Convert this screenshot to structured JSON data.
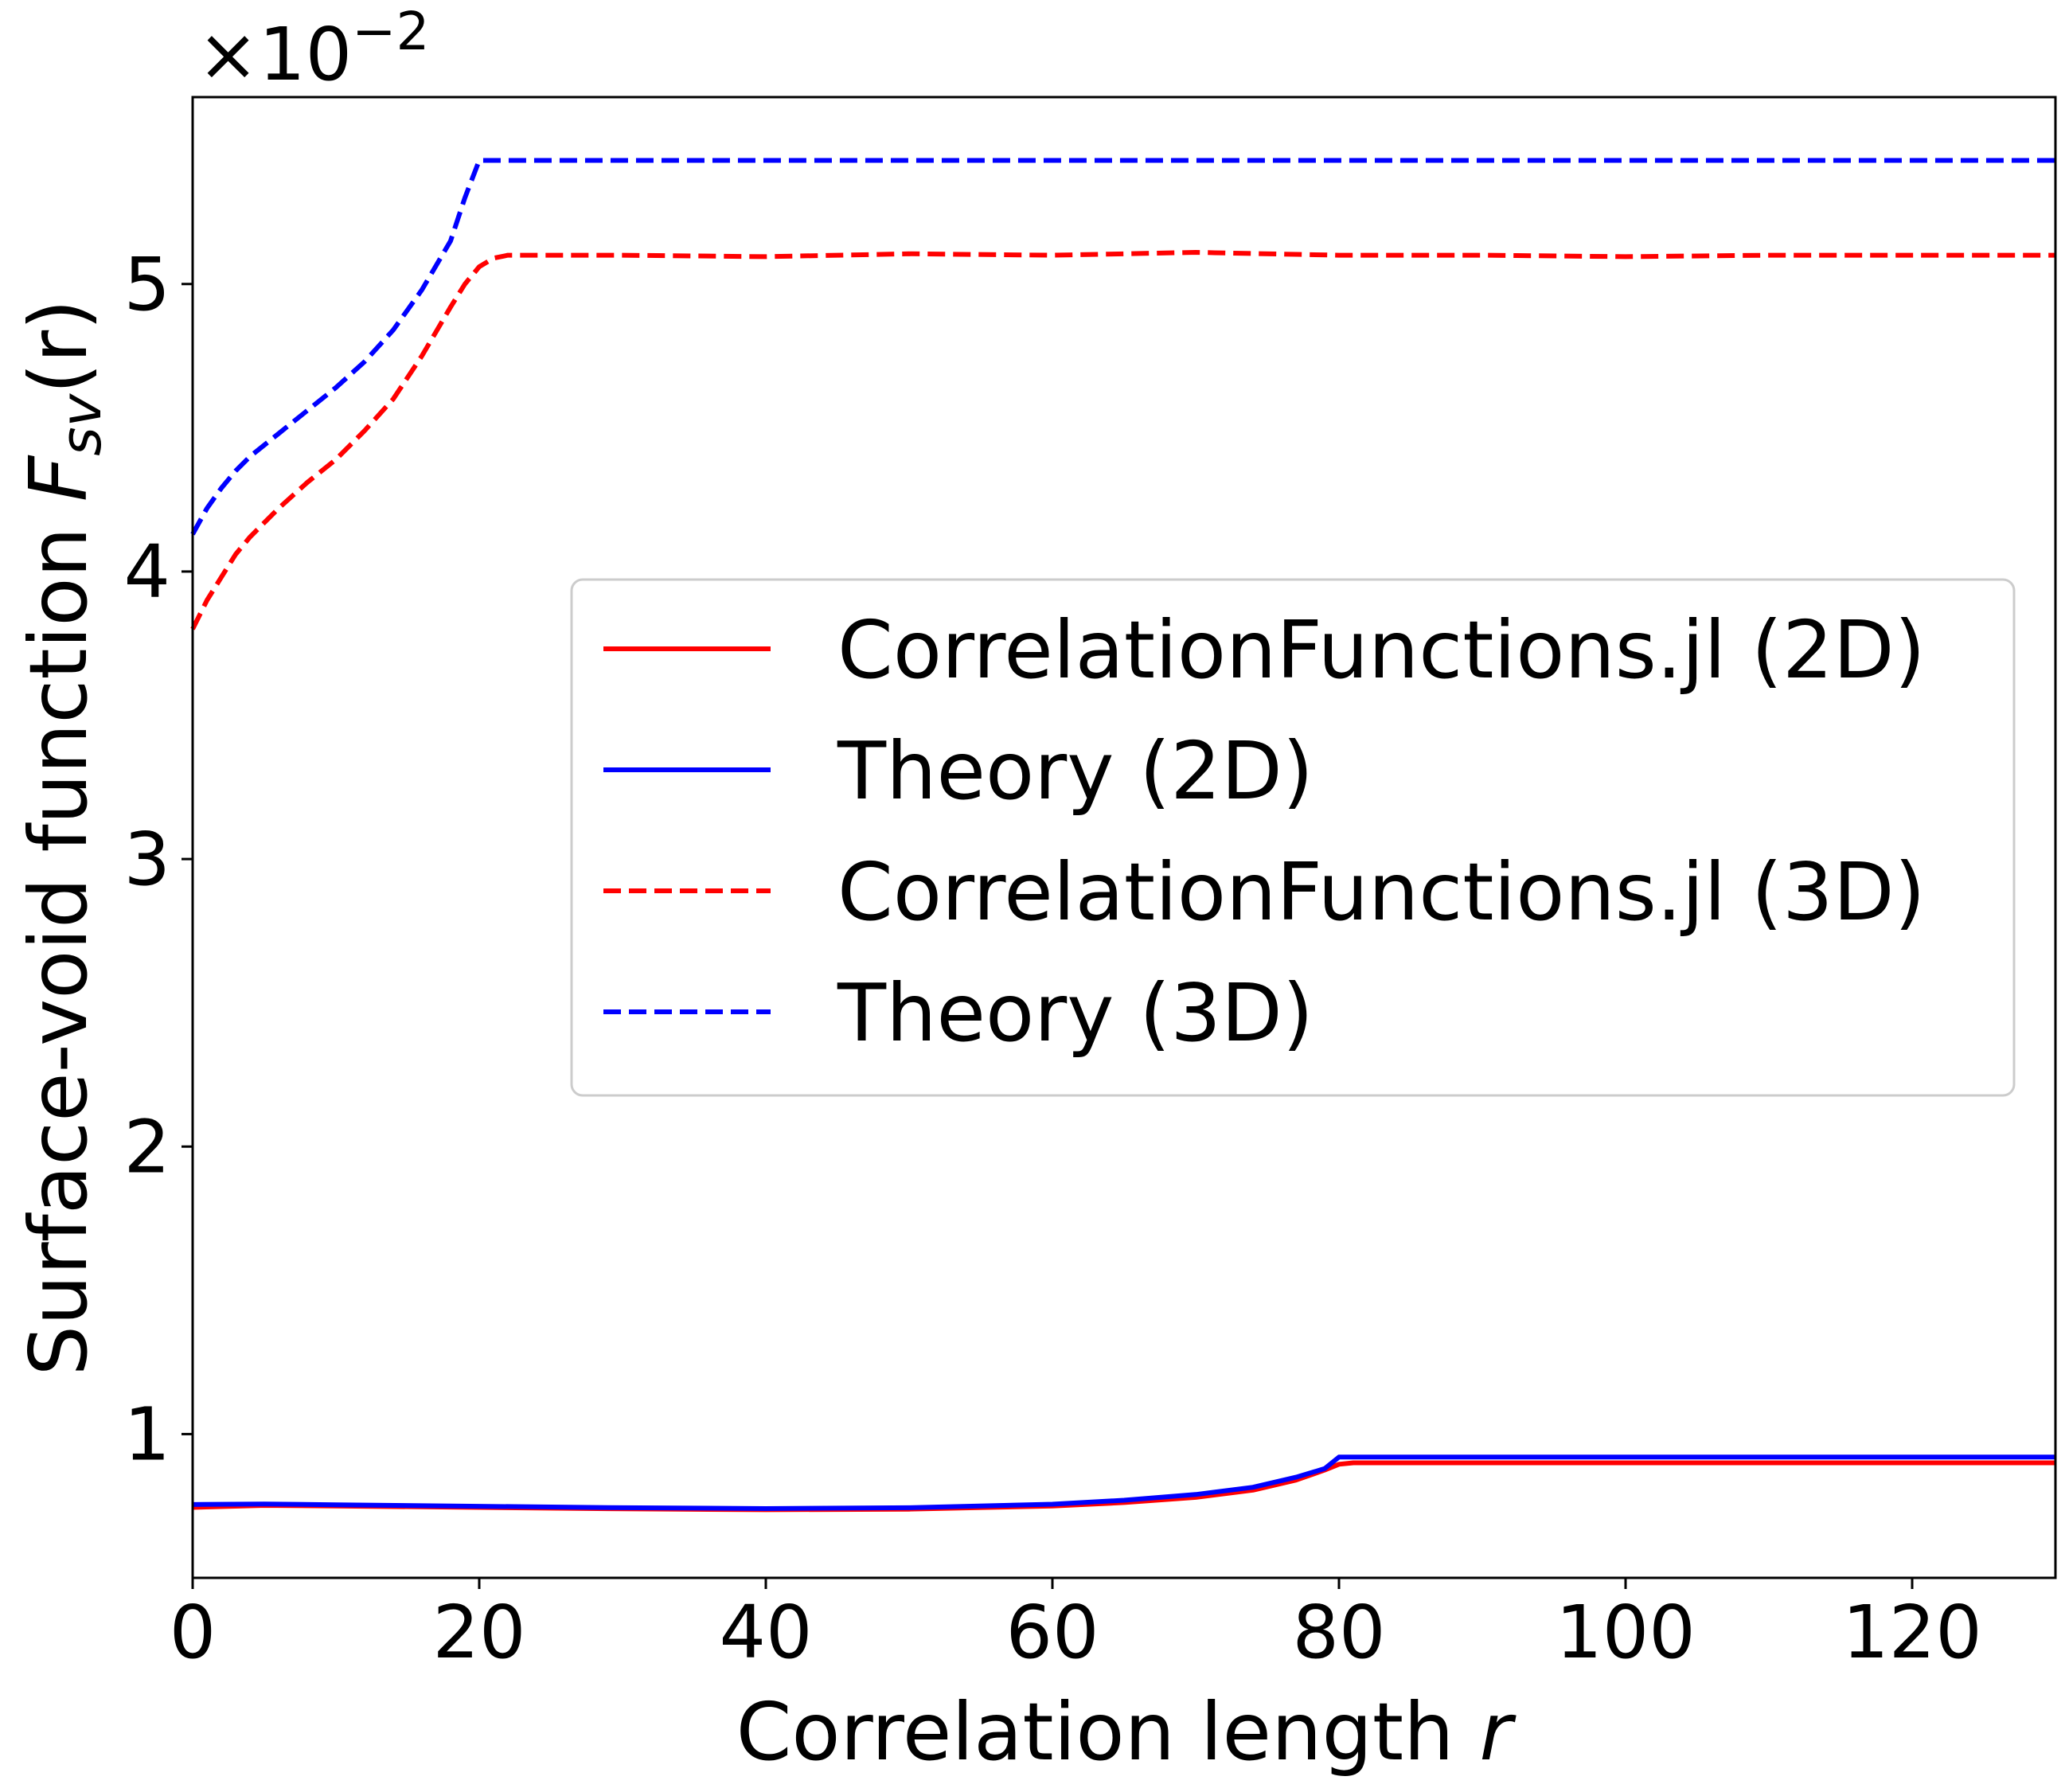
{
  "chart_data": {
    "type": "line",
    "xlabel": "Correlation length",
    "xlabel_var": "r",
    "ylabel": "Surface-void function",
    "ylabel_sym": "F",
    "ylabel_sub": "sv",
    "ylabel_arg": "(r)",
    "y_multiplier": "×10",
    "y_multiplier_exp": "−2",
    "xlim": [
      0,
      130
    ],
    "ylim": [
      0.5,
      5.65
    ],
    "x_ticks": [
      0,
      20,
      40,
      60,
      80,
      100,
      120
    ],
    "x_tick_labels": [
      "0",
      "20",
      "40",
      "60",
      "80",
      "100",
      "120"
    ],
    "y_ticks": [
      1,
      2,
      3,
      4,
      5
    ],
    "y_tick_labels": [
      "1",
      "2",
      "3",
      "4",
      "5"
    ],
    "grid": false,
    "legend_position": "center-right",
    "series": [
      {
        "name": "CorrelationFunctions.jl (2D)",
        "color": "#ff0000",
        "dash": "solid",
        "x": [
          0,
          5,
          10,
          20,
          30,
          40,
          50,
          60,
          65,
          70,
          74,
          77,
          79,
          80,
          81,
          90,
          100,
          110,
          120,
          130
        ],
        "y": [
          0.745,
          0.752,
          0.75,
          0.745,
          0.74,
          0.737,
          0.739,
          0.75,
          0.762,
          0.78,
          0.805,
          0.84,
          0.875,
          0.895,
          0.9,
          0.9,
          0.9,
          0.9,
          0.9,
          0.9
        ]
      },
      {
        "name": "Theory (2D)",
        "color": "#0000ff",
        "dash": "solid",
        "x": [
          0,
          5,
          10,
          20,
          30,
          40,
          50,
          60,
          65,
          70,
          74,
          77,
          79,
          80,
          81,
          90,
          100,
          110,
          120,
          130
        ],
        "y": [
          0.755,
          0.757,
          0.754,
          0.749,
          0.744,
          0.741,
          0.744,
          0.756,
          0.77,
          0.79,
          0.815,
          0.85,
          0.88,
          0.92,
          0.92,
          0.92,
          0.92,
          0.92,
          0.92,
          0.92
        ]
      },
      {
        "name": "CorrelationFunctions.jl (3D)",
        "color": "#ff0000",
        "dash": "dashed",
        "x": [
          0,
          1,
          2,
          3,
          4,
          6,
          8,
          10,
          12,
          14,
          16,
          18,
          19,
          20,
          21,
          22,
          30,
          40,
          50,
          60,
          70,
          80,
          90,
          100,
          110,
          120,
          130
        ],
        "y": [
          3.8,
          3.9,
          3.98,
          4.06,
          4.12,
          4.22,
          4.31,
          4.39,
          4.49,
          4.6,
          4.75,
          4.92,
          5.0,
          5.06,
          5.09,
          5.1,
          5.1,
          5.095,
          5.105,
          5.1,
          5.11,
          5.1,
          5.1,
          5.095,
          5.1,
          5.1,
          5.1
        ]
      },
      {
        "name": "Theory (3D)",
        "color": "#0000ff",
        "dash": "dashed",
        "x": [
          0,
          1,
          2,
          3,
          4,
          6,
          8,
          10,
          12,
          14,
          16,
          18,
          19,
          20,
          30,
          40,
          50,
          60,
          70,
          80,
          90,
          100,
          110,
          120,
          130
        ],
        "y": [
          4.13,
          4.22,
          4.29,
          4.35,
          4.4,
          4.48,
          4.56,
          4.64,
          4.73,
          4.84,
          4.98,
          5.15,
          5.3,
          5.43,
          5.43,
          5.43,
          5.43,
          5.43,
          5.43,
          5.43,
          5.43,
          5.43,
          5.43,
          5.43,
          5.43
        ]
      }
    ]
  }
}
